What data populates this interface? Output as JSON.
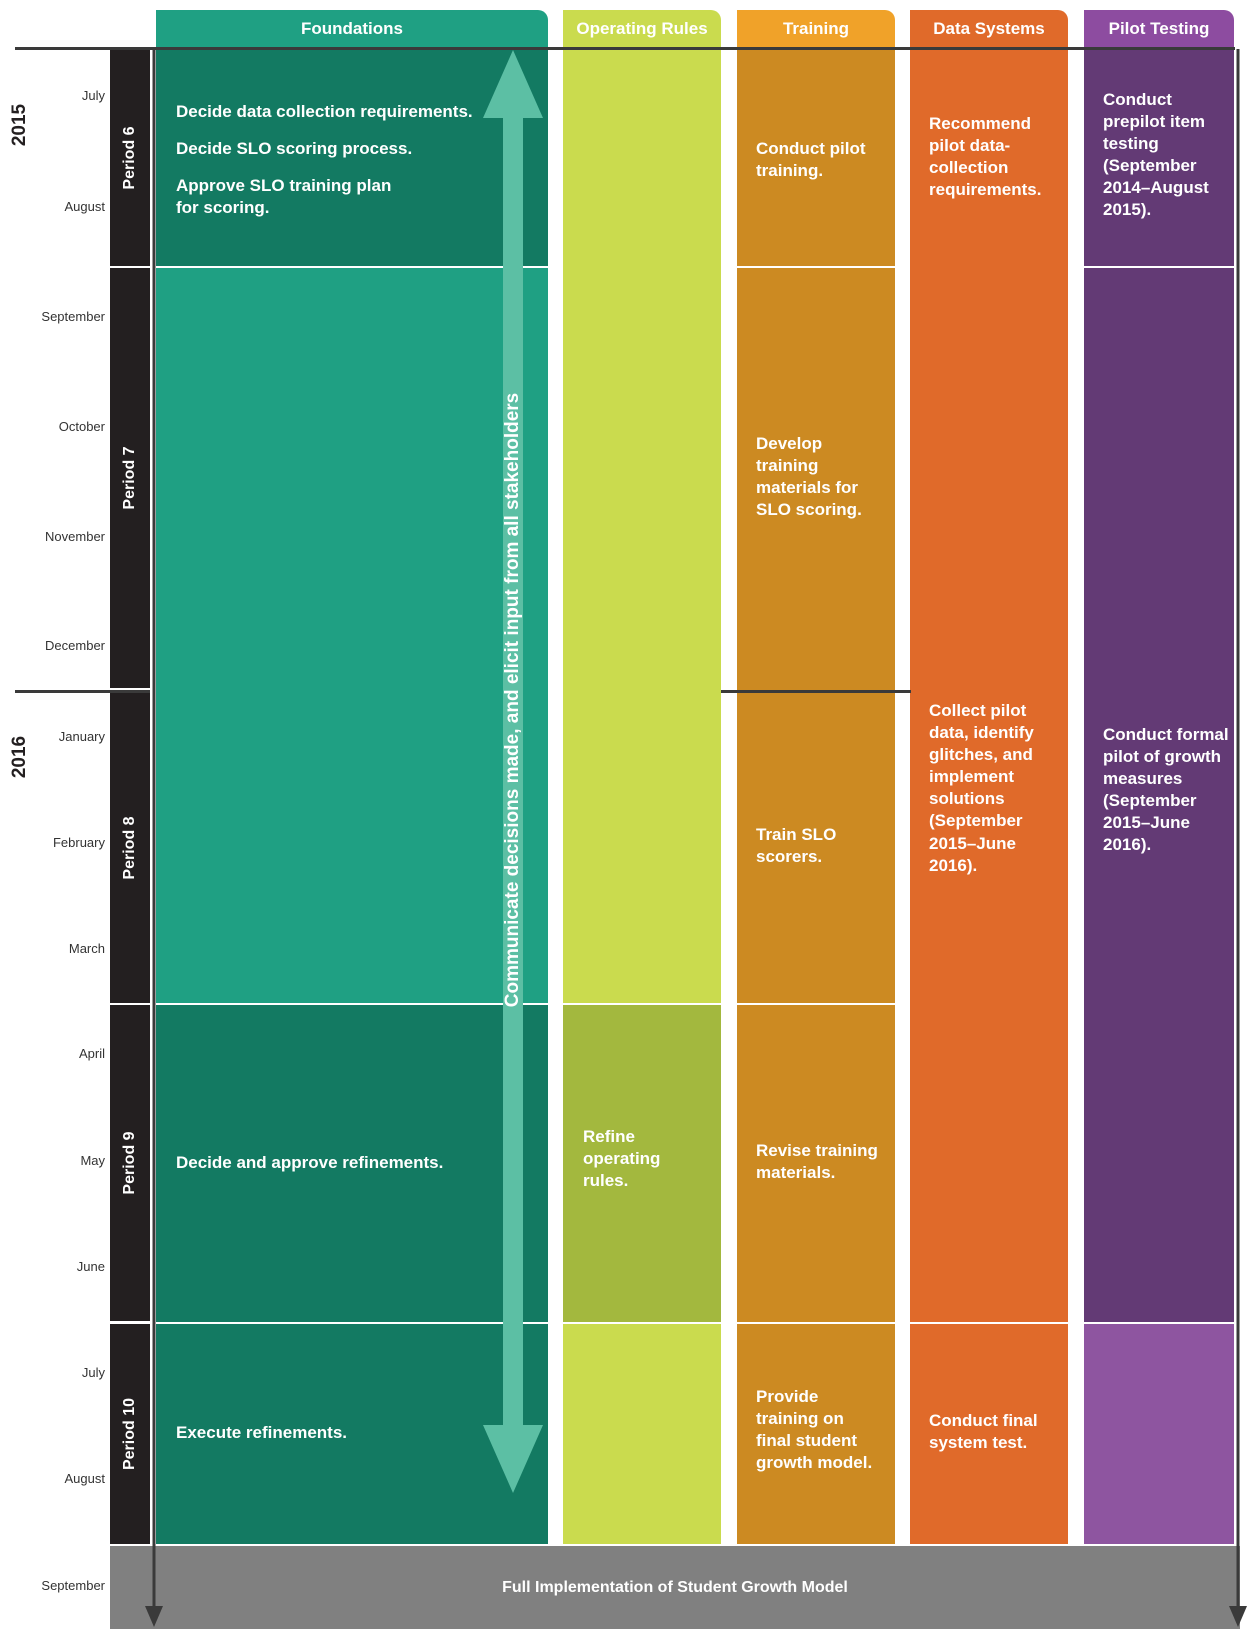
{
  "columns": {
    "foundations": "Foundations",
    "operating_rules": "Operating Rules",
    "training": "Training",
    "data_systems": "Data Systems",
    "pilot_testing": "Pilot Testing"
  },
  "years": {
    "y2015": "2015",
    "y2016": "2016"
  },
  "months": [
    "July",
    "August",
    "September",
    "October",
    "November",
    "December",
    "January",
    "February",
    "March",
    "April",
    "May",
    "June",
    "July",
    "August",
    "September"
  ],
  "periods": [
    "Period 6",
    "Period 7",
    "Period 8",
    "Period 9",
    "Period 10"
  ],
  "foundations": {
    "p6_items": [
      "Decide data collection requirements.",
      "Decide SLO scoring process.",
      "Approve SLO training plan for scoring."
    ],
    "p9": "Decide and approve refinements.",
    "p10": "Execute refinements."
  },
  "stakeholders": "Communicate decisions made, and elicit input from all stakeholders",
  "operating_rules": {
    "p9": "Refine operating rules."
  },
  "training": {
    "p6": "Conduct pilot training.",
    "p7": "Develop training materials for SLO scoring.",
    "p8": "Train SLO scorers.",
    "p9": "Revise training materials.",
    "p10": "Provide training on final student growth model."
  },
  "data_systems": {
    "p6": "Recommend pilot data-collection requirements.",
    "p8": "Collect pilot data, identify glitches, and implement solutions (September 2015–June 2016).",
    "p10": "Conduct final system test."
  },
  "pilot_testing": {
    "p6": "Conduct prepilot item testing (September 2014–August 2015).",
    "p8": "Conduct formal pilot of growth measures (September 2015–June 2016)."
  },
  "footer": "Full Implementation of Student Growth Model",
  "colors": {
    "foundations_dark": "#137a62",
    "foundations_light": "#1fa083",
    "operating_light": "#cadb4e",
    "operating_mid": "#a3b83e",
    "training": "#cc8a22",
    "training_head": "#f0a229",
    "data_systems": "#e06a2a",
    "pilot": "#633a75",
    "pilot_head": "#8d4ca0",
    "pilot_light": "#8e55a0",
    "footer": "#808080"
  }
}
